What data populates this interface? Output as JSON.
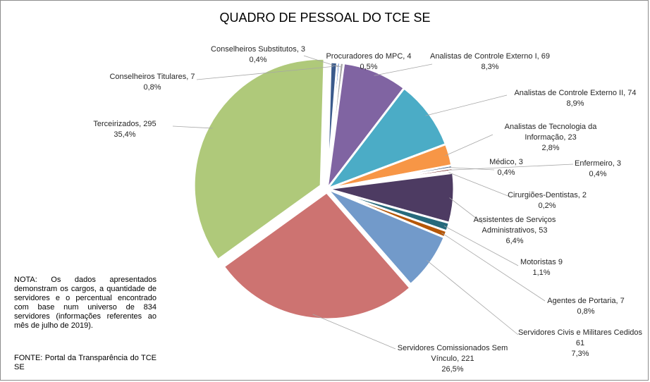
{
  "chart_data": {
    "type": "pie",
    "title": "QUADRO DE PESSOAL DO TCE SE",
    "slices": [
      {
        "lines": [
          "Conselheiros Substitutos, 3",
          "0,4%"
        ],
        "value": 3,
        "color": "#4472c4"
      },
      {
        "lines": [
          "Procuradores do MPC, 4",
          "0,5%"
        ],
        "value": 4,
        "color": "#a5a5a5"
      },
      {
        "lines": [
          "Analistas de Controle Externo I, 69",
          "8,3%"
        ],
        "value": 69,
        "color": "#8064a2"
      },
      {
        "lines": [
          "Analistas de Controle Externo II, 74",
          "8,9%"
        ],
        "value": 74,
        "color": "#4bacc6"
      },
      {
        "lines": [
          "Analistas de Tecnologia da",
          "Informação, 23",
          "2,8%"
        ],
        "value": 23,
        "color": "#f79646"
      },
      {
        "lines": [
          "Médico, 3",
          "0,4%"
        ],
        "value": 3,
        "color": "#2c4d75"
      },
      {
        "lines": [
          "Enfermeiro, 3",
          "0,4%"
        ],
        "value": 3,
        "color": "#772c2a"
      },
      {
        "lines": [
          "Cirurgiões-Dentistas, 2",
          "0,2%"
        ],
        "value": 2,
        "color": "#5f7530"
      },
      {
        "lines": [
          "Assistentes de Serviços",
          "Administrativos, 53",
          "6,4%"
        ],
        "value": 53,
        "color": "#4d3b62"
      },
      {
        "lines": [
          "Motoristas 9",
          "1,1%"
        ],
        "value": 9,
        "color": "#276a7c"
      },
      {
        "lines": [
          "Agentes de Portaria, 7",
          "0,8%"
        ],
        "value": 7,
        "color": "#b65708"
      },
      {
        "lines": [
          "Servidores Civis e Militares Cedidos",
          "61",
          "7,3%"
        ],
        "value": 61,
        "color": "#729aca"
      },
      {
        "lines": [
          "Servidores Comissionados Sem",
          "Vínculo, 221",
          "26,5%"
        ],
        "value": 221,
        "color": "#cd7371"
      },
      {
        "lines": [
          "Terceirizados, 295",
          "35,4%"
        ],
        "value": 295,
        "color": "#afc97a"
      },
      {
        "lines": [
          "Conselheiros Titulares, 7",
          "0,8%"
        ],
        "value": 7,
        "color": "#3a5a8c"
      }
    ]
  },
  "note": "NOTA: Os dados apresentados demonstram os cargos, a quantidade de servidores e o percentual encontrado com base num universo de 834 servidores (informações referentes ao mês de julho de 2019).",
  "source": "FONTE: Portal da Transparência do TCE SE"
}
